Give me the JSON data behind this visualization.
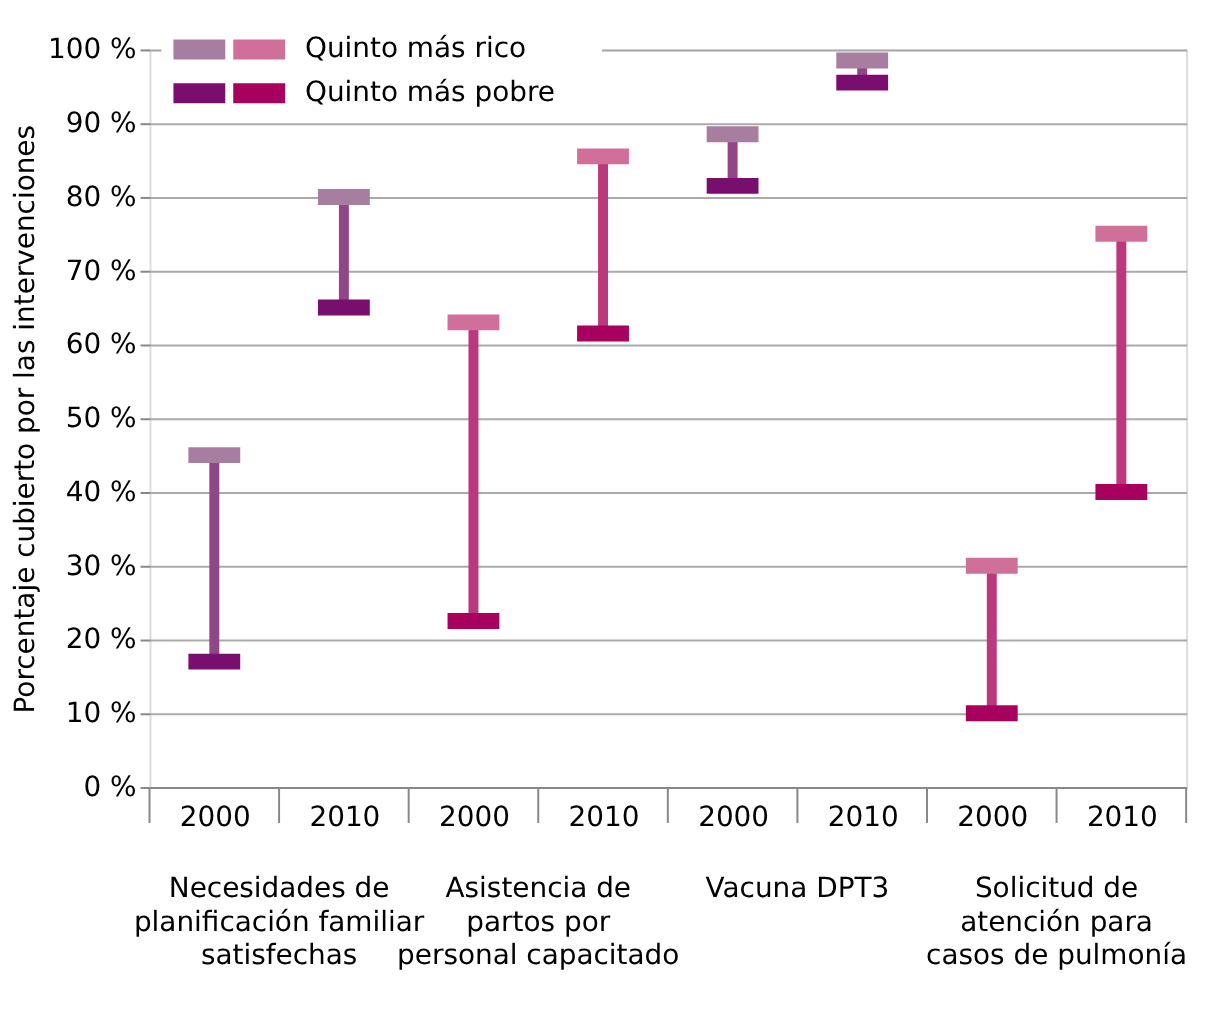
{
  "chart_data": {
    "type": "scatter",
    "ylabel": "Porcentaje cubierto por las intervenciones",
    "categories": [
      "2000",
      "2010",
      "2000",
      "2010",
      "2000",
      "2010",
      "2000",
      "2010"
    ],
    "annotations": [
      "Necesidades de\nplanificación familiar\nsatisfechas",
      "Asistencia de\npartos por\npersonal capacitado",
      "Vacuna DPT3",
      "Solicitud de\natención para\ncasos de pulmonía"
    ],
    "series": [
      {
        "name": "Quinto más rico",
        "colors": [
          "#a87ea0",
          "#a87ea0",
          "#d0709a",
          "#d0709a",
          "#a87ea0",
          "#a87ea0",
          "#d0709a",
          "#d0709a"
        ],
        "values": [
          45,
          80,
          63,
          85.5,
          88.5,
          98.5,
          30,
          75
        ]
      },
      {
        "name": "Quinto más pobre",
        "colors": [
          "#7a0e6e",
          "#7a0e6e",
          "#a8005e",
          "#a8005e",
          "#7a0e6e",
          "#7a0e6e",
          "#a8005e",
          "#a8005e"
        ],
        "values": [
          17,
          65,
          22.5,
          61.5,
          81.5,
          95.5,
          10,
          40
        ]
      }
    ],
    "ylim": [
      0,
      100
    ],
    "yticks": [
      {
        "value": 0,
        "label": "0 %"
      },
      {
        "value": 10,
        "label": "10 %"
      },
      {
        "value": 20,
        "label": "20 %"
      },
      {
        "value": 30,
        "label": "30 %"
      },
      {
        "value": 40,
        "label": "40 %"
      },
      {
        "value": 50,
        "label": "50 %"
      },
      {
        "value": 60,
        "label": "60 %"
      },
      {
        "value": 70,
        "label": "70 %"
      },
      {
        "value": 80,
        "label": "80 %"
      },
      {
        "value": 90,
        "label": "90 %"
      },
      {
        "value": 100,
        "label": "100 %"
      }
    ],
    "grid": "y",
    "legend": "top left"
  }
}
